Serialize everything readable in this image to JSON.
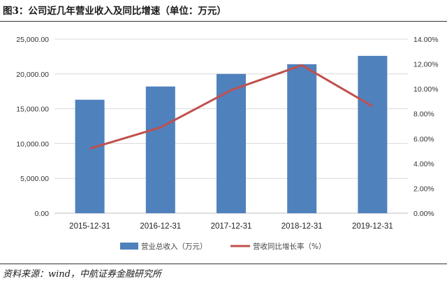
{
  "figure": {
    "title": "图3：公司近几年营业收入及同比增速（单位：万元）",
    "source": "资料来源：wind，中航证券金融研究所"
  },
  "chart_data": {
    "type": "bar",
    "title": "图3：公司近几年营业收入及同比增速（单位：万元）",
    "xlabel": "",
    "ylabel": "",
    "categories": [
      "2015-12-31",
      "2016-12-31",
      "2017-12-31",
      "2018-12-31",
      "2019-12-31"
    ],
    "series": [
      {
        "name": "营业总收入（万元）",
        "type": "bar",
        "axis": "left",
        "color": "#4f81bd",
        "values": [
          16300,
          18200,
          20000,
          21400,
          22600
        ]
      },
      {
        "name": "营收同比增长率（%）",
        "type": "line",
        "axis": "right",
        "color": "#c0504d",
        "values": [
          5.2,
          6.9,
          9.9,
          11.9,
          8.6
        ]
      }
    ],
    "ylim_left": [
      0,
      25000
    ],
    "ylim_right": [
      0,
      14
    ],
    "yticks_left": [
      "0.00",
      "5,000.00",
      "10,000.00",
      "15,000.00",
      "20,000.00",
      "25,000.00"
    ],
    "yticks_right": [
      "0.00%",
      "2.00%",
      "4.00%",
      "6.00%",
      "8.00%",
      "10.00%",
      "12.00%",
      "14.00%"
    ],
    "grid": true,
    "legend_position": "bottom"
  }
}
